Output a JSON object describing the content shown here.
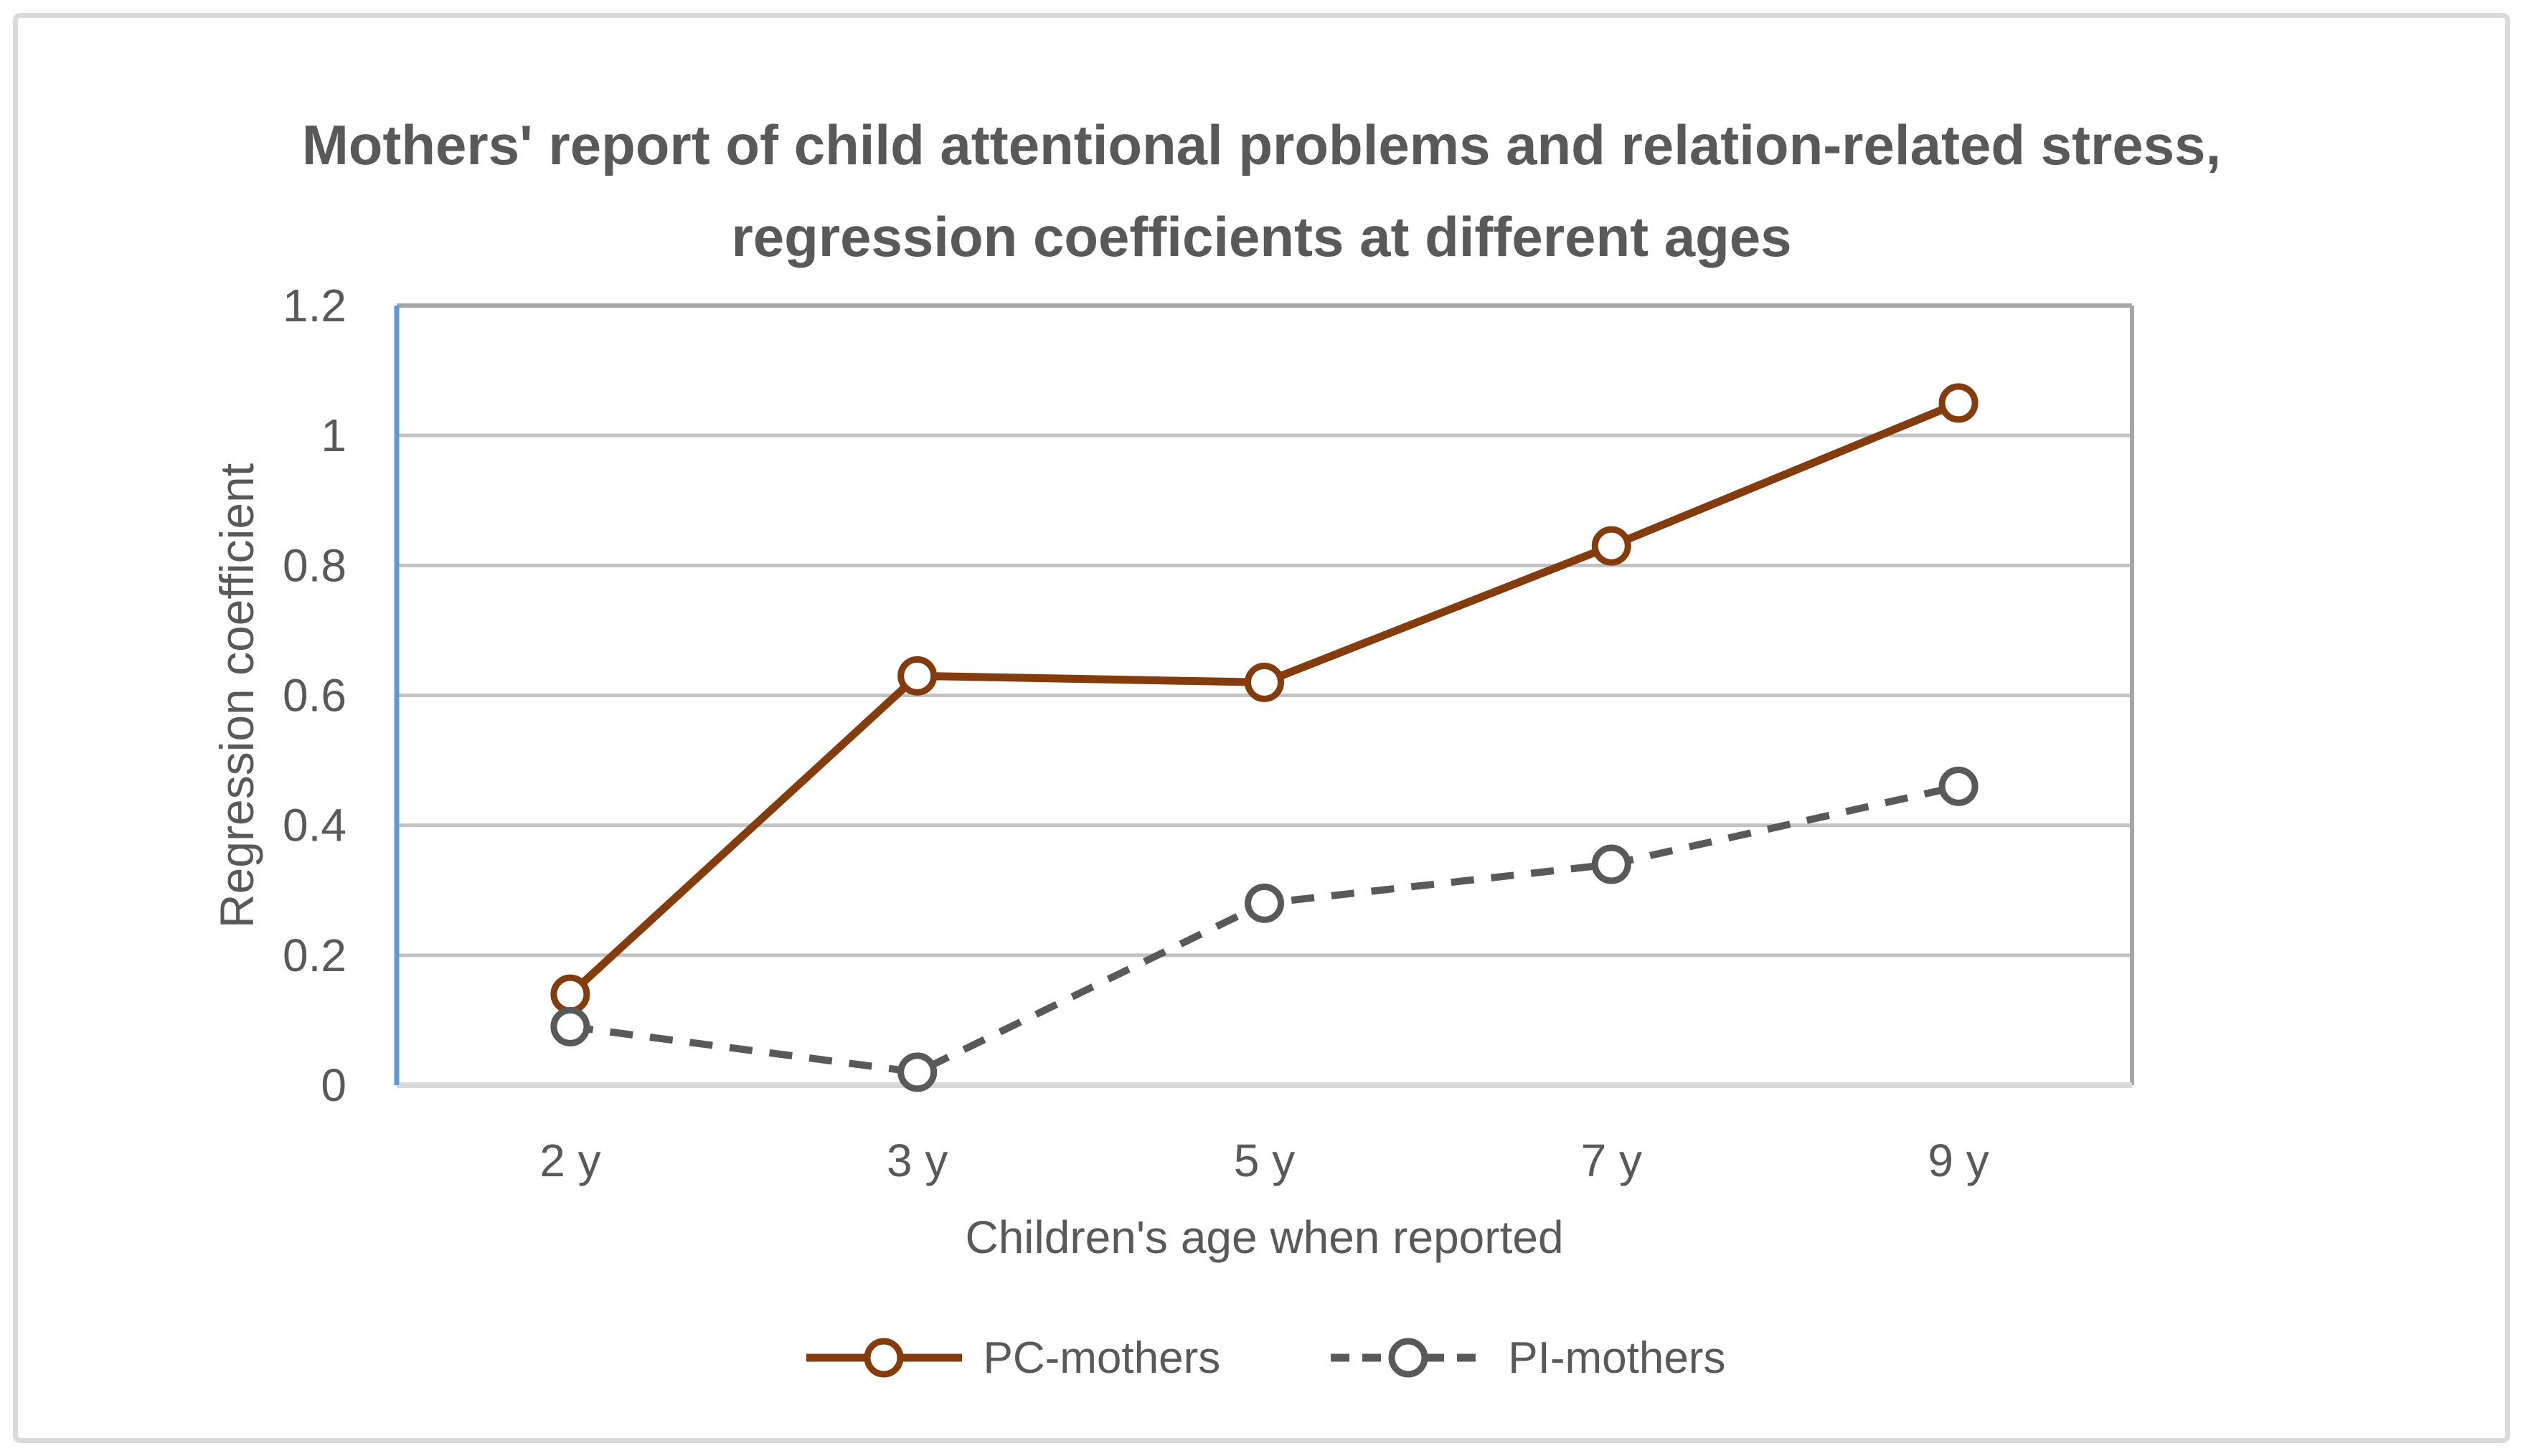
{
  "title": {
    "line1": "Mothers' report of child attentional problems and relation-related stress,",
    "line2": "regression coefficients at different ages"
  },
  "axes": {
    "y_title": "Regression coefficient",
    "x_title": "Children's age when reported"
  },
  "legend": [
    {
      "label": "PC-mothers"
    },
    {
      "label": "PI-mothers"
    }
  ],
  "colors": {
    "pc_series": "#843C0C",
    "pi_series": "#595959",
    "y_axis_line": "#5B9BD5",
    "gridline": "#c3c3c3",
    "plot_border": "#a6a6a6",
    "x_axis_line": "#d9d9d9",
    "text": "#595959",
    "outer_border": "#dadada"
  },
  "chart_data": {
    "type": "line",
    "title": "Mothers' report of child attentional problems and relation-related stress, regression coefficients at different ages",
    "categories": [
      "2 y",
      "3 y",
      "5 y",
      "7 y",
      "9 y"
    ],
    "series": [
      {
        "name": "PC-mothers",
        "values": [
          0.14,
          0.63,
          0.62,
          0.83,
          1.05
        ],
        "color": "#843C0C",
        "line_style": "solid",
        "marker": "open-circle"
      },
      {
        "name": "PI-mothers",
        "values": [
          0.09,
          0.02,
          0.28,
          0.34,
          0.46
        ],
        "color": "#595959",
        "line_style": "dashed",
        "marker": "open-circle"
      }
    ],
    "xlabel": "Children's age when reported",
    "ylabel": "Regression coefficient",
    "ylim": [
      0,
      1.2
    ],
    "yticks": [
      {
        "v": 0,
        "label": "0"
      },
      {
        "v": 0.2,
        "label": "0.2"
      },
      {
        "v": 0.4,
        "label": "0.4"
      },
      {
        "v": 0.6,
        "label": "0.6"
      },
      {
        "v": 0.8,
        "label": "0.8"
      },
      {
        "v": 1,
        "label": "1"
      },
      {
        "v": 1.2,
        "label": "1.2"
      }
    ],
    "grid": true,
    "legend_position": "bottom"
  }
}
